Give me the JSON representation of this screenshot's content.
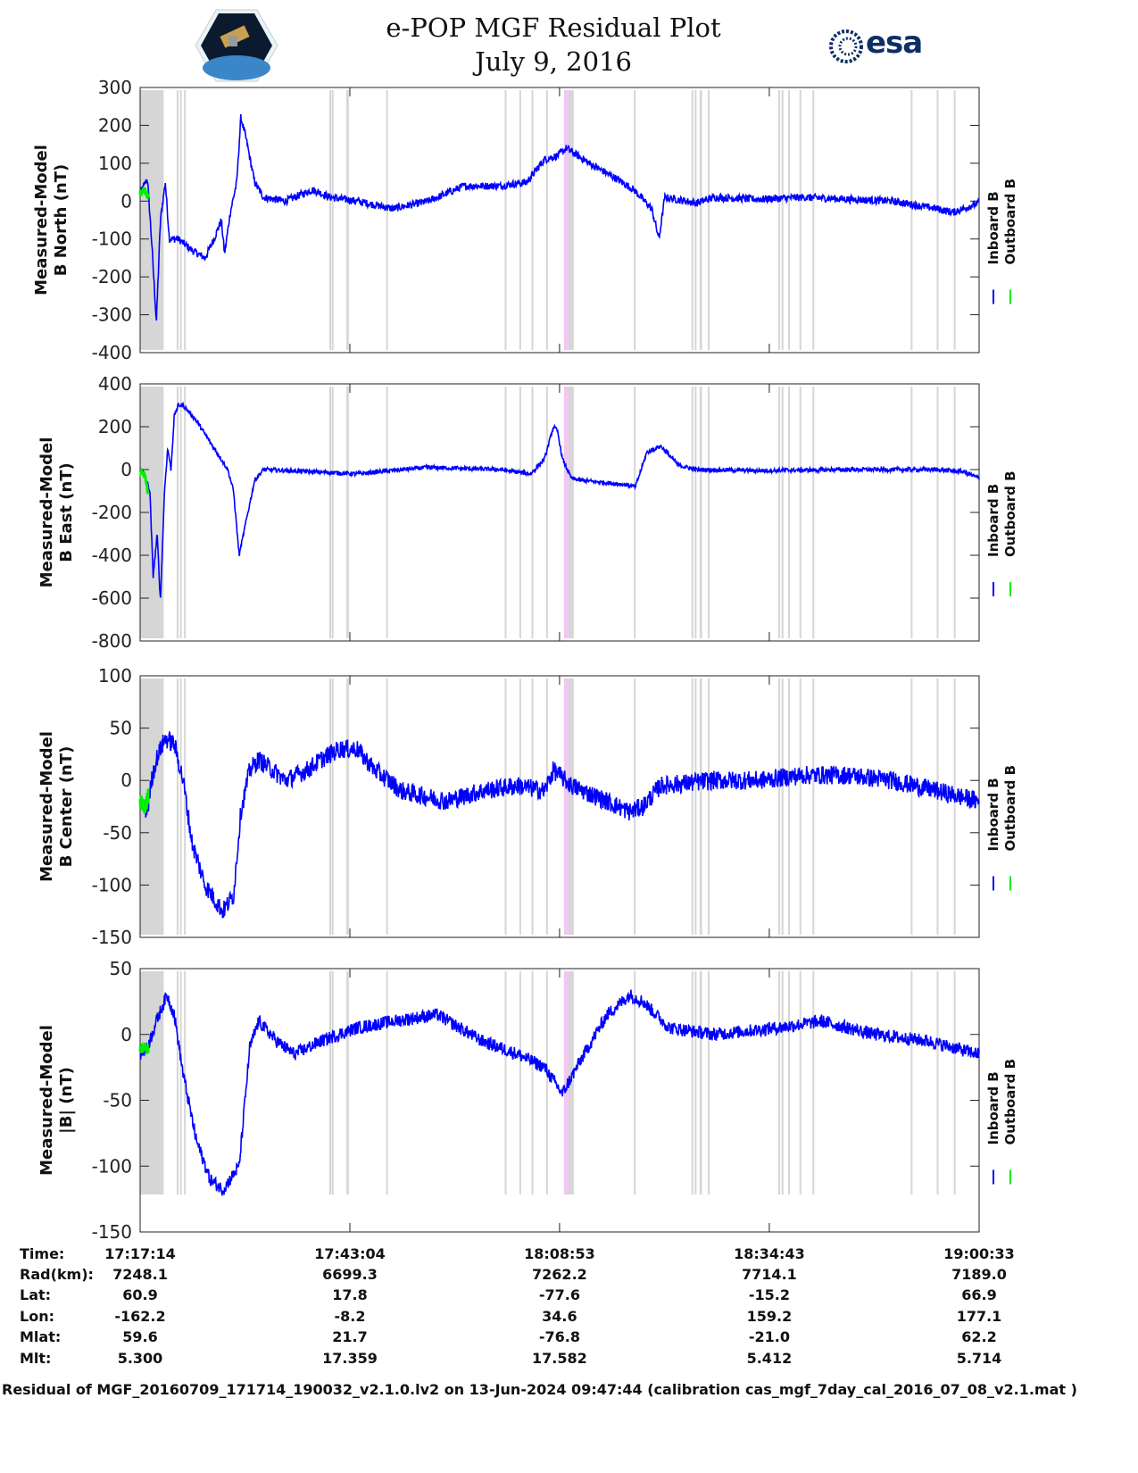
{
  "header": {
    "title_line1": "e-POP MGF Residual Plot",
    "title_line2": "July 9, 2016",
    "esa_logo_text": "esa"
  },
  "chart_data": {
    "type": "line",
    "x_unit": "minutes since 17:17:14",
    "xlim": [
      0,
      103.32
    ],
    "x_ticks": [
      0,
      25.83,
      51.65,
      77.48,
      103.32
    ],
    "colors": {
      "inboard": "#0000ff",
      "outboard": "#00ee00",
      "flag": "#d6d6d6",
      "flag_pink": "#f0c8f0"
    },
    "legend": [
      "Inboard B",
      "Outboard B"
    ],
    "legend_placement": "right",
    "flag_intervals": [
      [
        0,
        2.9
      ],
      [
        4.5,
        4.7
      ],
      [
        4.9,
        5.1
      ],
      [
        5.4,
        5.6
      ],
      [
        23.3,
        23.5
      ],
      [
        23.6,
        23.8
      ],
      [
        25.4,
        25.7
      ],
      [
        30.3,
        30.5
      ],
      [
        44.9,
        45.1
      ],
      [
        46.7,
        46.9
      ],
      [
        48.2,
        48.4
      ],
      [
        50.0,
        50.2
      ],
      [
        52.2,
        53.4
      ],
      [
        60.8,
        61.0
      ],
      [
        67.9,
        68.1
      ],
      [
        68.3,
        68.5
      ],
      [
        68.9,
        69.2
      ],
      [
        69.9,
        70.1
      ],
      [
        78.6,
        78.8
      ],
      [
        79.0,
        79.2
      ],
      [
        79.8,
        80.0
      ],
      [
        81.2,
        81.4
      ],
      [
        82.8,
        83.0
      ],
      [
        94.9,
        95.1
      ],
      [
        98.1,
        98.3
      ],
      [
        100.2,
        100.4
      ]
    ],
    "pink_intervals": [
      [
        52.2,
        52.8
      ]
    ],
    "panels": [
      {
        "ylabel": [
          "Measured-Model",
          "B North (nT)"
        ],
        "ylim": [
          -400,
          300
        ],
        "yticks": [
          -400,
          -300,
          -200,
          -100,
          0,
          100,
          200,
          300
        ],
        "noise_amplitude": 10,
        "inboard": [
          [
            0,
            20
          ],
          [
            0.9,
            60
          ],
          [
            1.4,
            -100
          ],
          [
            2.0,
            -320
          ],
          [
            2.5,
            -50
          ],
          [
            3.1,
            50
          ],
          [
            3.6,
            -100
          ],
          [
            4.7,
            -100
          ],
          [
            6.4,
            -130
          ],
          [
            8.0,
            -150
          ],
          [
            9.1,
            -100
          ],
          [
            10.0,
            -50
          ],
          [
            10.4,
            -140
          ],
          [
            11.1,
            -30
          ],
          [
            11.9,
            50
          ],
          [
            12.4,
            220
          ],
          [
            13.0,
            170
          ],
          [
            14.1,
            50
          ],
          [
            15.2,
            10
          ],
          [
            17.9,
            0
          ],
          [
            21.2,
            30
          ],
          [
            23.4,
            10
          ],
          [
            26.7,
            0
          ],
          [
            31.1,
            -20
          ],
          [
            35.5,
            0
          ],
          [
            39.9,
            40
          ],
          [
            44.3,
            40
          ],
          [
            47.6,
            50
          ],
          [
            49.8,
            110
          ],
          [
            51.4,
            120
          ],
          [
            52.5,
            140
          ],
          [
            55.3,
            100
          ],
          [
            58.6,
            60
          ],
          [
            60.8,
            30
          ],
          [
            63.0,
            -20
          ],
          [
            63.9,
            -100
          ],
          [
            64.6,
            10
          ],
          [
            68.5,
            -5
          ],
          [
            70.7,
            10
          ],
          [
            76.2,
            5
          ],
          [
            81.7,
            10
          ],
          [
            87.2,
            5
          ],
          [
            92.6,
            0
          ],
          [
            98.1,
            -20
          ],
          [
            100.1,
            -30
          ],
          [
            103.3,
            -5
          ]
        ],
        "outboard": [
          [
            0,
            20
          ],
          [
            0.6,
            30
          ],
          [
            1.0,
            10
          ]
        ]
      },
      {
        "ylabel": [
          "Measured-Model",
          "B East (nT)"
        ],
        "ylim": [
          -800,
          400
        ],
        "yticks": [
          -800,
          -600,
          -400,
          -200,
          0,
          200,
          400
        ],
        "noise_amplitude": 10,
        "inboard": [
          [
            0,
            0
          ],
          [
            0.5,
            -20
          ],
          [
            1.2,
            -100
          ],
          [
            1.6,
            -500
          ],
          [
            2.1,
            -300
          ],
          [
            2.5,
            -620
          ],
          [
            3.0,
            -100
          ],
          [
            3.4,
            100
          ],
          [
            3.8,
            0
          ],
          [
            4.2,
            250
          ],
          [
            4.7,
            300
          ],
          [
            5.3,
            300
          ],
          [
            6.9,
            230
          ],
          [
            9.1,
            100
          ],
          [
            10.8,
            0
          ],
          [
            11.5,
            -100
          ],
          [
            12.2,
            -400
          ],
          [
            13.0,
            -250
          ],
          [
            14.1,
            -50
          ],
          [
            15.2,
            0
          ],
          [
            21.2,
            -10
          ],
          [
            26.7,
            -20
          ],
          [
            32.2,
            0
          ],
          [
            35.5,
            10
          ],
          [
            44.3,
            0
          ],
          [
            48.1,
            -20
          ],
          [
            49.8,
            50
          ],
          [
            50.9,
            200
          ],
          [
            51.4,
            180
          ],
          [
            52.0,
            50
          ],
          [
            53.1,
            -40
          ],
          [
            54.2,
            -50
          ],
          [
            59.7,
            -70
          ],
          [
            61.0,
            -80
          ],
          [
            61.7,
            0
          ],
          [
            62.4,
            80
          ],
          [
            64.1,
            110
          ],
          [
            66.3,
            20
          ],
          [
            68.5,
            0
          ],
          [
            76.2,
            -5
          ],
          [
            87.2,
            0
          ],
          [
            98.1,
            0
          ],
          [
            101.4,
            -10
          ],
          [
            103.3,
            -40
          ]
        ],
        "outboard": [
          [
            0,
            0
          ],
          [
            0.6,
            -30
          ],
          [
            1.0,
            -120
          ]
        ]
      },
      {
        "ylabel": [
          "Measured-Model",
          "B Center (nT)"
        ],
        "ylim": [
          -150,
          100
        ],
        "yticks": [
          -150,
          -100,
          -50,
          0,
          50,
          100
        ],
        "noise_amplitude": 9,
        "inboard": [
          [
            0,
            -20
          ],
          [
            0.9,
            -30
          ],
          [
            1.4,
            0
          ],
          [
            2.0,
            20
          ],
          [
            2.5,
            30
          ],
          [
            3.1,
            40
          ],
          [
            4.2,
            35
          ],
          [
            5.3,
            0
          ],
          [
            6.4,
            -60
          ],
          [
            8.0,
            -100
          ],
          [
            9.7,
            -120
          ],
          [
            10.2,
            -125
          ],
          [
            11.5,
            -110
          ],
          [
            12.4,
            -30
          ],
          [
            13.5,
            10
          ],
          [
            14.6,
            20
          ],
          [
            17.9,
            0
          ],
          [
            20.6,
            10
          ],
          [
            22.3,
            20
          ],
          [
            24.5,
            30
          ],
          [
            26.7,
            30
          ],
          [
            28.9,
            10
          ],
          [
            32.2,
            -10
          ],
          [
            37.7,
            -20
          ],
          [
            42.1,
            -10
          ],
          [
            46.5,
            -5
          ],
          [
            49.8,
            -10
          ],
          [
            50.9,
            10
          ],
          [
            53.1,
            -5
          ],
          [
            57.5,
            -20
          ],
          [
            60.3,
            -30
          ],
          [
            61.9,
            -25
          ],
          [
            64.1,
            -5
          ],
          [
            70.7,
            0
          ],
          [
            76.2,
            0
          ],
          [
            81.7,
            5
          ],
          [
            87.2,
            5
          ],
          [
            92.6,
            0
          ],
          [
            98.1,
            -10
          ],
          [
            103.3,
            -20
          ]
        ],
        "outboard": [
          [
            0,
            -20
          ],
          [
            0.6,
            -25
          ],
          [
            1.0,
            -15
          ]
        ]
      },
      {
        "ylabel": [
          "Measured-Model",
          "|B| (nT)"
        ],
        "ylim": [
          -150,
          50
        ],
        "yticks": [
          -150,
          -100,
          -50,
          0,
          50
        ],
        "noise_amplitude": 5,
        "inboard": [
          [
            0,
            -15
          ],
          [
            0.9,
            -10
          ],
          [
            2.0,
            10
          ],
          [
            3.3,
            30
          ],
          [
            4.2,
            15
          ],
          [
            5.3,
            -30
          ],
          [
            6.9,
            -80
          ],
          [
            8.6,
            -110
          ],
          [
            10.2,
            -118
          ],
          [
            12.2,
            -100
          ],
          [
            13.5,
            -10
          ],
          [
            14.6,
            10
          ],
          [
            16.8,
            -5
          ],
          [
            19.0,
            -15
          ],
          [
            22.3,
            -5
          ],
          [
            26.7,
            5
          ],
          [
            31.1,
            10
          ],
          [
            36.6,
            15
          ],
          [
            42.1,
            -5
          ],
          [
            46.5,
            -15
          ],
          [
            49.8,
            -25
          ],
          [
            52.0,
            -45
          ],
          [
            54.2,
            -20
          ],
          [
            57.5,
            15
          ],
          [
            60.3,
            30
          ],
          [
            61.9,
            25
          ],
          [
            65.2,
            5
          ],
          [
            70.7,
            0
          ],
          [
            78.4,
            5
          ],
          [
            83.9,
            10
          ],
          [
            90.4,
            0
          ],
          [
            97.0,
            -5
          ],
          [
            103.3,
            -15
          ]
        ],
        "outboard": [
          [
            0,
            -12
          ],
          [
            0.6,
            -10
          ],
          [
            1.0,
            -12
          ]
        ]
      }
    ]
  },
  "table": {
    "row_labels": [
      "Time:",
      "Rad(km):",
      "Lat:",
      "Lon:",
      "Mlat:",
      "Mlt:"
    ],
    "columns": [
      [
        "17:17:14",
        "7248.1",
        "60.9",
        "-162.2",
        "59.6",
        "5.300"
      ],
      [
        "17:43:04",
        "6699.3",
        "17.8",
        "-8.2",
        "21.7",
        "17.359"
      ],
      [
        "18:08:53",
        "7262.2",
        "-77.6",
        "34.6",
        "-76.8",
        "17.582"
      ],
      [
        "18:34:43",
        "7714.1",
        "-15.2",
        "159.2",
        "-21.0",
        "5.412"
      ],
      [
        "19:00:33",
        "7189.0",
        "66.9",
        "177.1",
        "62.2",
        "5.714"
      ]
    ]
  },
  "footer": "Residual of MGF_20160709_171714_190032_v2.1.0.lv2 on 13-Jun-2024 09:47:44 (calibration cas_mgf_7day_cal_2016_07_08_v2.1.mat )"
}
